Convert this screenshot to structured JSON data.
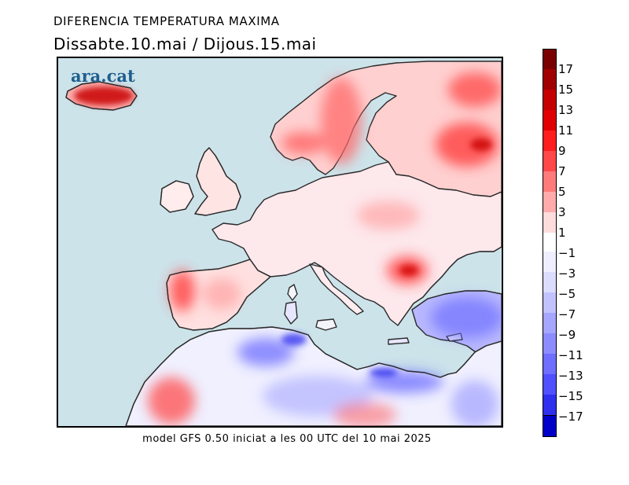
{
  "header": {
    "title": "DIFERENCIA TEMPERATURA MAXIMA",
    "subtitle": "Dissabte.10.mai / Dijous.15.mai"
  },
  "map": {
    "logo_text": "ara.cat",
    "footer": "model GFS 0.50 iniciat a les 00 UTC del 10 mai 2025",
    "colors": {
      "sea": "#cde3ea",
      "land_base": "#f4f4fb",
      "coast": "#2a2a2a"
    },
    "regions": [
      {
        "name": "iceland",
        "anomaly": 13
      },
      {
        "name": "scandinavia",
        "anomaly": 7
      },
      {
        "name": "finland-russia",
        "anomaly": 9
      },
      {
        "name": "romania",
        "anomaly": 9
      },
      {
        "name": "iberia-west",
        "anomaly": 9
      },
      {
        "name": "turkey",
        "anomaly": -9
      },
      {
        "name": "algeria-north",
        "anomaly": -11
      },
      {
        "name": "libya-coast",
        "anomaly": -13
      },
      {
        "name": "morocco",
        "anomaly": 7
      },
      {
        "name": "sahara-south",
        "anomaly": 5
      }
    ]
  },
  "legend": {
    "positive_labels": [
      "17",
      "15",
      "13",
      "11",
      "9",
      "7",
      "5",
      "3",
      "1"
    ],
    "negative_labels": [
      "−1",
      "−3",
      "−5",
      "−7",
      "−9",
      "−11",
      "−13",
      "−15",
      "−17"
    ],
    "positive_colors": [
      "#7a0000",
      "#a00000",
      "#c40000",
      "#e00000",
      "#ff1e1e",
      "#ff4848",
      "#ff7b7b",
      "#ffabab",
      "#ffdcdc"
    ],
    "negative_colors": [
      "#eeeeff",
      "#dcdcff",
      "#c2c2ff",
      "#a6a6ff",
      "#8c8cff",
      "#6e6eff",
      "#5050ff",
      "#2f2fee",
      "#0000c8"
    ]
  }
}
